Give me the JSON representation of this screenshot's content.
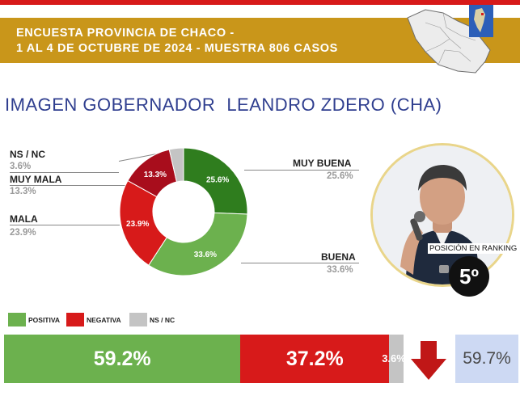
{
  "header": {
    "line1": "ENCUESTA PROVINCIA DE CHACO -",
    "line2": "1 AL 4 DE OCTUBRE DE 2024 - MUESTRA 806 CASOS"
  },
  "title": {
    "part1": "IMAGEN GOBERNADOR",
    "part2": "LEANDRO ZDERO (CHA)"
  },
  "colors": {
    "muy_buena": "#2f7d1e",
    "buena": "#6cb14e",
    "mala": "#d71a1a",
    "muy_mala": "#a80d1c",
    "ns_nc": "#c4c4c4",
    "header_band": "#c9961a",
    "title": "#2f3e8f"
  },
  "chart_data": {
    "type": "pie",
    "subtype": "donut",
    "slices": [
      {
        "name": "MUY BUENA",
        "value": 25.6,
        "label": "25.6%",
        "value_text": "25.6%"
      },
      {
        "name": "BUENA",
        "value": 33.6,
        "label": "33.6%",
        "value_text": "33.6%"
      },
      {
        "name": "MALA",
        "value": 23.9,
        "label": "23.9%",
        "value_text": "23.9%"
      },
      {
        "name": "MUY MALA",
        "value": 13.3,
        "label": "13.3%",
        "value_text": "13.3%"
      },
      {
        "name": "NS / NC",
        "value": 3.6,
        "label": "",
        "value_text": "3.6%"
      }
    ],
    "summary": {
      "type": "bar",
      "stacked": true,
      "legend": [
        "POSITIVA",
        "NEGATIVA",
        "NS / NC"
      ],
      "values": [
        59.2,
        37.2,
        3.6
      ],
      "labels": [
        "59.2%",
        "37.2%",
        "3.6%"
      ]
    }
  },
  "ranking": {
    "label": "POSICIÓN EN RANKING",
    "position": "5º"
  },
  "change": {
    "direction": "down",
    "value": "59.7%"
  }
}
